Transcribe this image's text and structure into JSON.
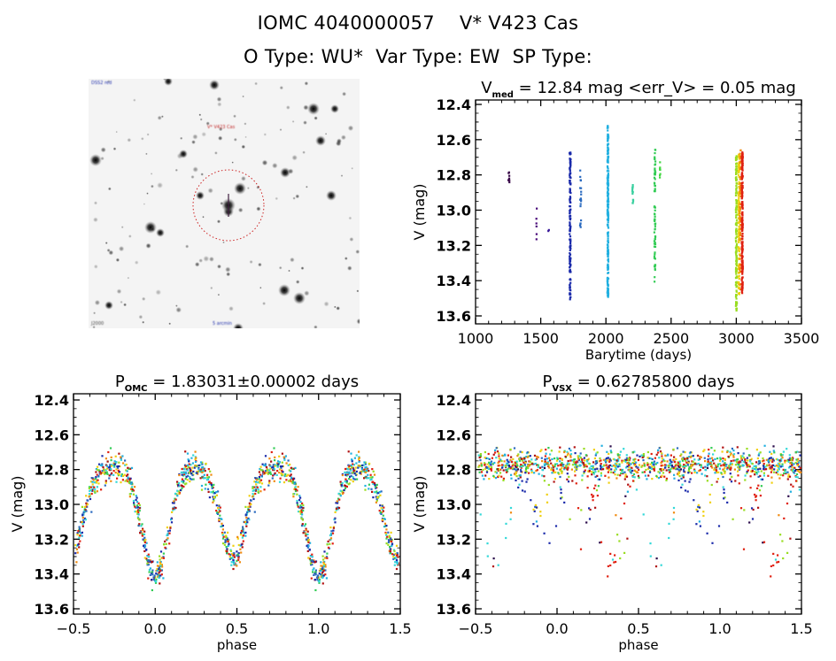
{
  "header": {
    "line1": "IOMC 4040000057    V* V423 Cas",
    "line2": "O Type: WU*  Var Type: EW  SP Type:"
  },
  "sky_image": {
    "target_label": "V* V423 Cas",
    "corner_label_top_left": "DSS2 red",
    "bottom_left_label": "J2000",
    "bottom_center_label": "5 arcmin",
    "target_marker": "dashed-circle",
    "marker_color": "#cc2222"
  },
  "chart_data": [
    {
      "type": "scatter",
      "id": "time-series",
      "title": "V_med = 12.84 mag <err_V> = 0.05 mag",
      "title_parts": {
        "main": "V",
        "sub": "med",
        "rest": " = 12.84 mag <err_V> = 0.05 mag"
      },
      "xlabel": "Barytime (days)",
      "ylabel": "V (mag)",
      "xlim": [
        1000,
        3500
      ],
      "ylim": [
        13.6,
        12.4
      ],
      "y_inverted": true,
      "xticks": [
        1000,
        1500,
        2000,
        2500,
        3000,
        3500
      ],
      "yticks": [
        "12.4",
        "12.6",
        "12.8",
        "13.0",
        "13.2",
        "13.4",
        "13.6"
      ],
      "yticks_values": [
        12.4,
        12.6,
        12.8,
        13.0,
        13.2,
        13.4,
        13.6
      ],
      "xticks_labels": [
        "1000",
        "1500",
        "2000",
        "2500",
        "3000",
        "3500"
      ],
      "clusters": [
        {
          "x": 1255,
          "ymin": 12.76,
          "ymax": 12.86,
          "n": 8,
          "color": "#3a0a4a"
        },
        {
          "x": 1465,
          "ymin": 12.99,
          "ymax": 13.18,
          "n": 6,
          "color": "#4a0a7a"
        },
        {
          "x": 1560,
          "ymin": 13.11,
          "ymax": 13.12,
          "n": 2,
          "color": "#3a1a9a"
        },
        {
          "x": 1725,
          "ymin": 12.67,
          "ymax": 13.52,
          "n": 140,
          "color": "#1a2aaa"
        },
        {
          "x": 1805,
          "ymin": 12.77,
          "ymax": 13.1,
          "n": 20,
          "color": "#2a6abf"
        },
        {
          "x": 2015,
          "ymin": 12.52,
          "ymax": 13.5,
          "n": 220,
          "color": "#22b0e0"
        },
        {
          "x": 2205,
          "ymin": 12.8,
          "ymax": 12.97,
          "n": 14,
          "color": "#3ad0a0"
        },
        {
          "x": 2375,
          "ymin": 12.65,
          "ymax": 13.41,
          "n": 70,
          "color": "#33cc55"
        },
        {
          "x": 2415,
          "ymin": 12.72,
          "ymax": 12.83,
          "n": 8,
          "color": "#44d844"
        },
        {
          "x": 3000,
          "ymin": 12.69,
          "ymax": 13.57,
          "n": 160,
          "color": "#99dd22"
        },
        {
          "x": 3020,
          "ymin": 12.68,
          "ymax": 13.48,
          "n": 120,
          "color": "#f0d010"
        },
        {
          "x": 3030,
          "ymin": 12.63,
          "ymax": 13.45,
          "n": 60,
          "color": "#f08a10"
        },
        {
          "x": 3045,
          "ymin": 12.67,
          "ymax": 13.48,
          "n": 220,
          "color": "#e02010"
        }
      ]
    },
    {
      "type": "scatter",
      "id": "phase-omc",
      "title": "P_OMC = 1.83031±0.00002 days",
      "title_parts": {
        "main": "P",
        "sub": "OMC",
        "rest": " = 1.83031±0.00002 days"
      },
      "xlabel": "phase",
      "ylabel": "V (mag)",
      "xlim": [
        -0.5,
        1.5
      ],
      "ylim": [
        13.6,
        12.4
      ],
      "y_inverted": true,
      "xticks_values": [
        -0.5,
        0.0,
        0.5,
        1.0,
        1.5
      ],
      "xticks_labels": [
        "−0.5",
        "0.0",
        "0.5",
        "1.0",
        "1.5"
      ],
      "yticks": [
        "12.4",
        "12.6",
        "12.8",
        "13.0",
        "13.2",
        "13.4",
        "13.6"
      ],
      "yticks_values": [
        12.4,
        12.6,
        12.8,
        13.0,
        13.2,
        13.4,
        13.6
      ],
      "light_curve": {
        "maximum_mag": 12.78,
        "primary_minimum": {
          "phase": 0.0,
          "mag": 13.42
        },
        "secondary_minimum": {
          "phase": 0.48,
          "mag": 13.3
        },
        "scatter_mag": 0.05,
        "points_per_cycle": 700
      }
    },
    {
      "type": "scatter",
      "id": "phase-vsx",
      "title": "P_VSX = 0.62785800 days",
      "title_parts": {
        "main": "P",
        "sub": "VSX",
        "rest": " = 0.62785800 days"
      },
      "xlabel": "phase",
      "ylabel": "V (mag)",
      "xlim": [
        -0.5,
        1.5
      ],
      "ylim": [
        13.6,
        12.4
      ],
      "y_inverted": true,
      "xticks_values": [
        -0.5,
        0.0,
        0.5,
        1.0,
        1.5
      ],
      "xticks_labels": [
        "−0.5",
        "0.0",
        "0.5",
        "1.0",
        "1.5"
      ],
      "yticks": [
        "12.4",
        "12.6",
        "12.8",
        "13.0",
        "13.2",
        "13.4",
        "13.6"
      ],
      "yticks_values": [
        12.4,
        12.6,
        12.8,
        13.0,
        13.2,
        13.4,
        13.6
      ],
      "light_curve": {
        "maximum_mag": 12.77,
        "note": "incoherent folding: several offset partial eclipse tracks",
        "scatter_mag": 0.06,
        "points_per_cycle": 700
      }
    }
  ],
  "palette": [
    "#2a0a4a",
    "#1a2aaa",
    "#2a6abf",
    "#22b0e0",
    "#33d8d8",
    "#33cc55",
    "#99dd22",
    "#f0d010",
    "#f08a10",
    "#e02010",
    "#b01010"
  ]
}
